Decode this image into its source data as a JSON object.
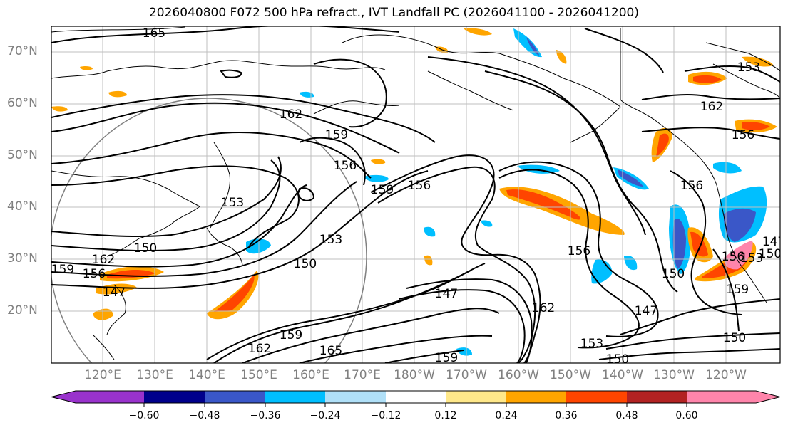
{
  "title": "2026040800 F072 500 hPa refract., IVT Landfall PC (2026041100 - 2026041200)",
  "lat_labels": [
    "70°N",
    "60°N",
    "50°N",
    "40°N",
    "30°N",
    "20°N"
  ],
  "lon_labels": [
    "120°E",
    "130°E",
    "140°E",
    "150°E",
    "160°E",
    "170°E",
    "180°W",
    "170°W",
    "160°W",
    "150°W",
    "140°W",
    "130°W",
    "120°W"
  ],
  "contour_labels": [
    "165",
    "162",
    "159",
    "156",
    "153",
    "150",
    "147",
    "162",
    "156",
    "159",
    "156",
    "153",
    "150",
    "147",
    "156",
    "150",
    "147",
    "156",
    "162",
    "159",
    "153",
    "150",
    "165",
    "162",
    "159",
    "159",
    "153",
    "150",
    "162",
    "156",
    "156",
    "147",
    "150",
    "159",
    "153"
  ],
  "colorbar": {
    "ticks": [
      "−0.60",
      "−0.48",
      "−0.36",
      "−0.24",
      "−0.12",
      "0.12",
      "0.24",
      "0.36",
      "0.48",
      "0.60"
    ],
    "colors": [
      "#9932cc",
      "#00008b",
      "#3a57c8",
      "#00bfff",
      "#b0e0f8",
      "#ffffff",
      "#ffe88a",
      "#ffa500",
      "#ff4500",
      "#b22222",
      "#ff85ab"
    ]
  }
}
